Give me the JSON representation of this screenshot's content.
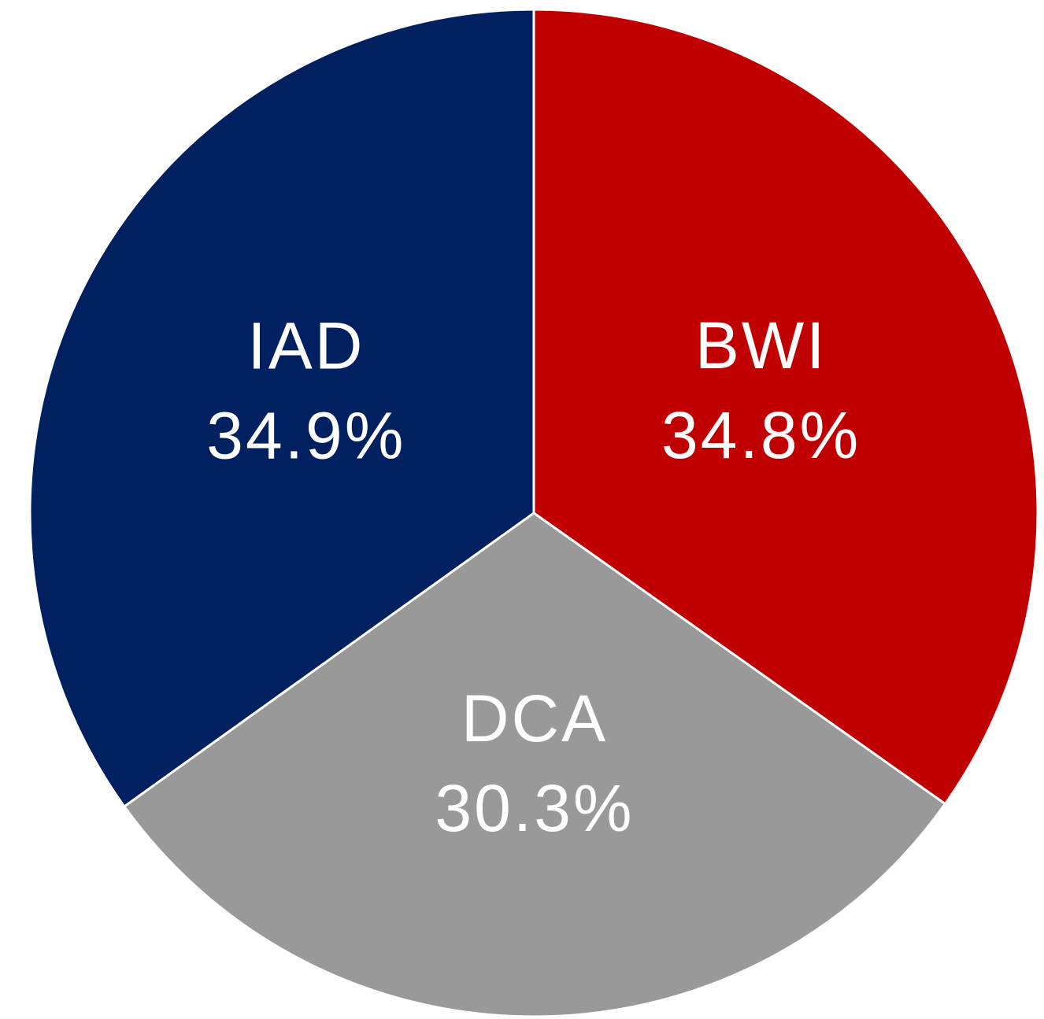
{
  "chart_data": {
    "type": "pie",
    "categories": [
      "BWI",
      "DCA",
      "IAD"
    ],
    "values": [
      34.8,
      30.3,
      34.9
    ],
    "value_labels": [
      "34.8%",
      "30.3%",
      "34.9%"
    ],
    "colors": [
      "#c00000",
      "#999999",
      "#002060"
    ]
  }
}
